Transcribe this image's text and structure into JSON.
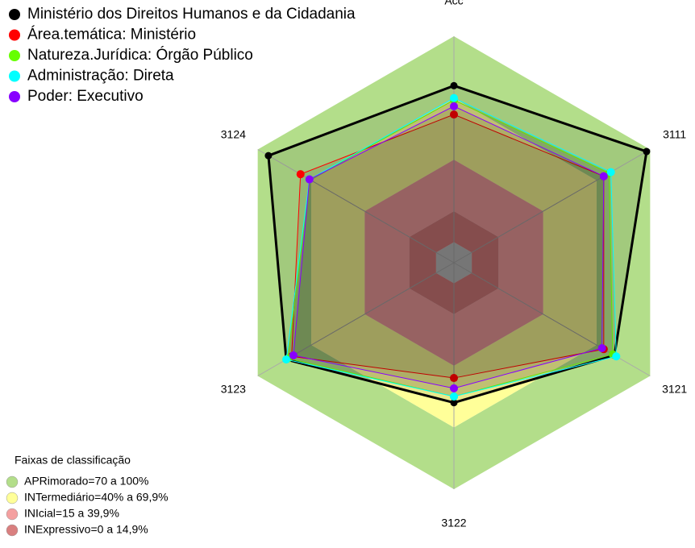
{
  "chart_data": {
    "type": "radar",
    "categories": [
      "Acc",
      "3111",
      "3121",
      "3122",
      "3123",
      "3124"
    ],
    "rlim": [
      -10,
      100
    ],
    "series": [
      {
        "name": "Ministério dos Direitos Humanos e da Cidadania",
        "color": "#000000",
        "values": [
          76,
          98,
          80,
          58,
          84,
          94
        ]
      },
      {
        "name": "Área.temática: Ministério",
        "color": "#ff0000",
        "values": [
          62,
          74,
          74,
          46,
          81,
          76
        ]
      },
      {
        "name": "Natureza.Jurídica: Órgão Público",
        "color": "#66ff00",
        "values": [
          69,
          77,
          79,
          55,
          83,
          71
        ]
      },
      {
        "name": "Administração: Direta",
        "color": "#00ffff",
        "values": [
          70,
          78,
          81,
          55,
          84,
          71
        ]
      },
      {
        "name": "Poder: Executivo",
        "color": "#8800ff",
        "values": [
          66,
          74,
          73,
          51,
          80,
          71
        ]
      }
    ],
    "bands_title": "Faixas de classificação",
    "bands": [
      {
        "label": "APRimorado=70 a 100%",
        "color": "#b3de8a",
        "from": 70,
        "to": 100
      },
      {
        "label": "INTermediário=40% a 69,9%",
        "color": "#ffff99",
        "from": 40,
        "to": 70
      },
      {
        "label": "INIcial=15 a 39,9%",
        "color": "#f4a0a0",
        "from": 15,
        "to": 40
      },
      {
        "label": "INExpressivo=0 a 14,9%",
        "color": "#d97f7f",
        "from": 0,
        "to": 15
      }
    ]
  }
}
